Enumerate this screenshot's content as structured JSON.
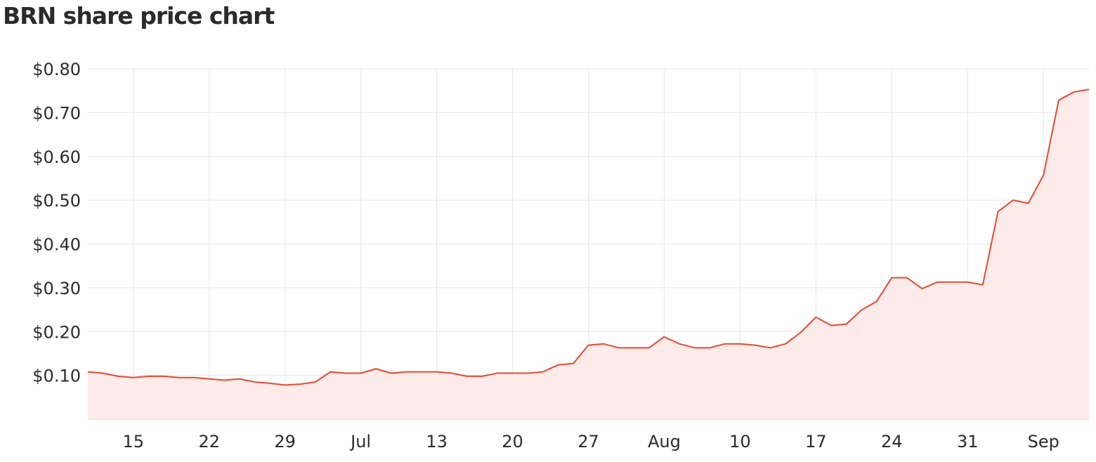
{
  "chart_data": {
    "type": "area",
    "title": "BRN share price chart",
    "color": "#e24a33",
    "fill_color": "#fcebe9",
    "grid": true,
    "categories": [
      null,
      null,
      null,
      "15",
      null,
      null,
      null,
      null,
      "22",
      null,
      null,
      null,
      null,
      "29",
      null,
      null,
      null,
      null,
      "Jul",
      null,
      null,
      null,
      null,
      "13",
      null,
      null,
      null,
      null,
      "20",
      null,
      null,
      null,
      null,
      "27",
      null,
      null,
      null,
      null,
      "Aug",
      null,
      null,
      null,
      null,
      "10",
      null,
      null,
      null,
      null,
      "17",
      null,
      null,
      null,
      null,
      "24",
      null,
      null,
      null,
      null,
      "31",
      null,
      null,
      null,
      null,
      "Sep",
      null,
      null,
      null
    ],
    "values": [
      0.108,
      0.105,
      0.098,
      0.095,
      0.098,
      0.098,
      0.095,
      0.095,
      0.092,
      0.089,
      0.092,
      0.085,
      0.082,
      0.078,
      0.08,
      0.085,
      0.108,
      0.105,
      0.105,
      0.115,
      0.105,
      0.108,
      0.108,
      0.108,
      0.105,
      0.098,
      0.098,
      0.105,
      0.105,
      0.105,
      0.108,
      0.124,
      0.127,
      0.169,
      0.172,
      0.163,
      0.163,
      0.163,
      0.188,
      0.172,
      0.163,
      0.163,
      0.172,
      0.172,
      0.169,
      0.163,
      0.172,
      0.198,
      0.233,
      0.214,
      0.217,
      0.249,
      0.269,
      0.323,
      0.323,
      0.298,
      0.313,
      0.313,
      0.313,
      0.307,
      0.474,
      0.5,
      0.493,
      0.557,
      0.728,
      0.747,
      0.753
    ],
    "ylim": [
      0,
      0.8
    ],
    "yticks": [
      {
        "value": 0.1,
        "label": "$0.10"
      },
      {
        "value": 0.2,
        "label": "$0.20"
      },
      {
        "value": 0.3,
        "label": "$0.30"
      },
      {
        "value": 0.4,
        "label": "$0.40"
      },
      {
        "value": 0.5,
        "label": "$0.50"
      },
      {
        "value": 0.6,
        "label": "$0.60"
      },
      {
        "value": 0.7,
        "label": "$0.70"
      },
      {
        "value": 0.8,
        "label": "$0.80"
      }
    ]
  }
}
